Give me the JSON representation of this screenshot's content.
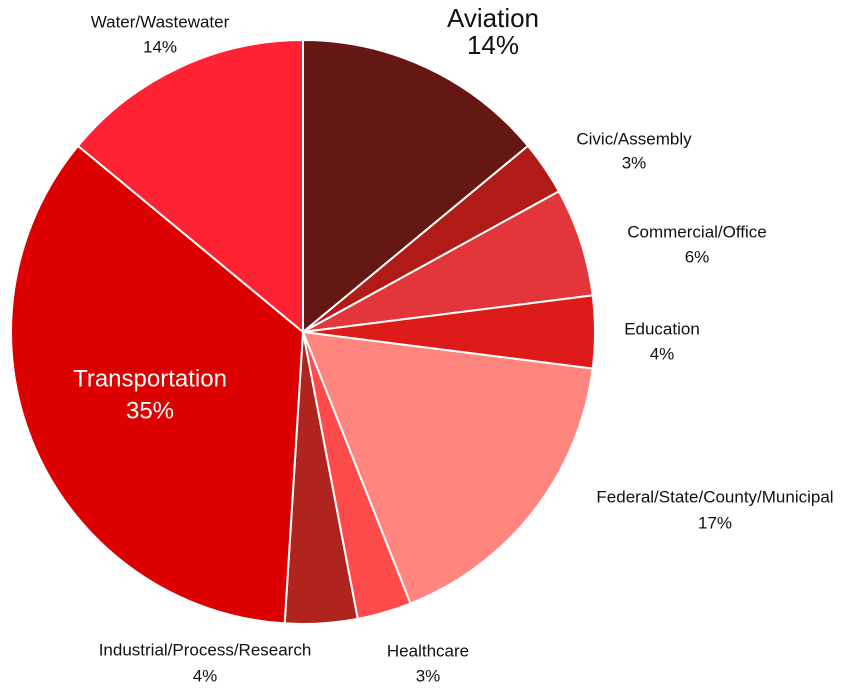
{
  "chart_data": {
    "type": "pie",
    "categories": [
      "Aviation",
      "Civic/Assembly",
      "Commercial/Office",
      "Education",
      "Federal/State/County/Municipal",
      "Healthcare",
      "Industrial/Process/Research",
      "Transportation",
      "Water/Wastewater"
    ],
    "values": [
      14,
      3,
      6,
      4,
      17,
      3,
      4,
      35,
      14
    ],
    "value_labels": [
      "14%",
      "3%",
      "6%",
      "4%",
      "17%",
      "3%",
      "4%",
      "35%",
      "14%"
    ],
    "colors": [
      "#641713",
      "#b01a17",
      "#e2363a",
      "#dd1c1a",
      "#ff857e",
      "#ff4b4b",
      "#b02420",
      "#dc0000",
      "#ff2232"
    ]
  }
}
